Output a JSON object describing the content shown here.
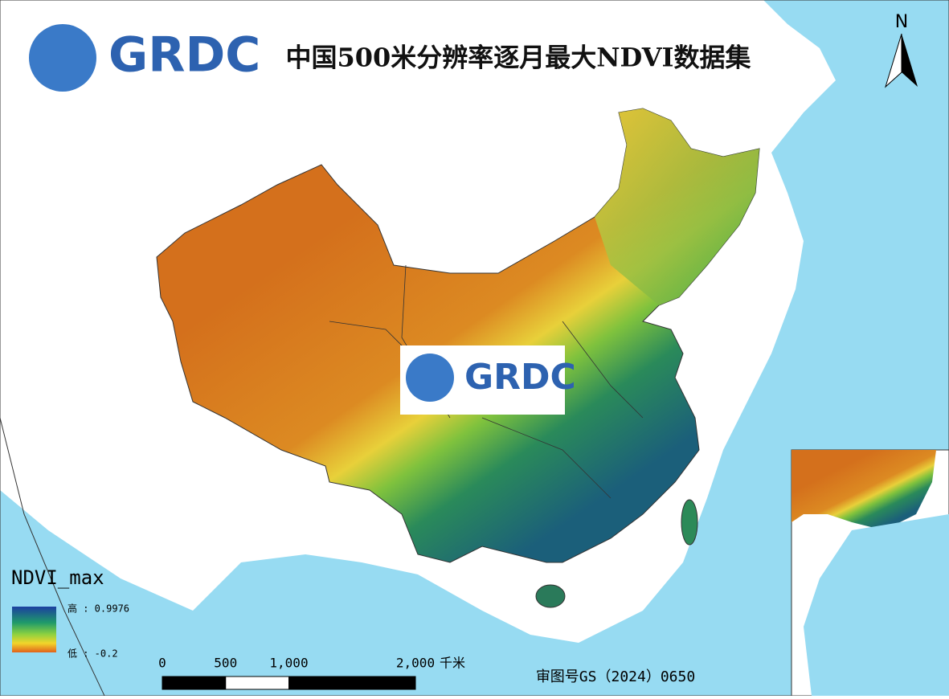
{
  "header": {
    "logo": "GRDC",
    "title": "中国500米分辨率逐月最大NDVI数据集"
  },
  "north_arrow": "N",
  "watermark": "GRDC",
  "legend": {
    "title": "NDVI_max",
    "high": "高 : 0.9976",
    "low": "低 : -0.2"
  },
  "scale_bar": {
    "ticks": [
      {
        "value": 0,
        "label": "0"
      },
      {
        "value": 500,
        "label": "500"
      },
      {
        "value": 1000,
        "label": "1,000"
      },
      {
        "value": 2000,
        "label": "2,000"
      }
    ],
    "unit": "千米"
  },
  "approval": "审图号GS（2024）0650"
}
